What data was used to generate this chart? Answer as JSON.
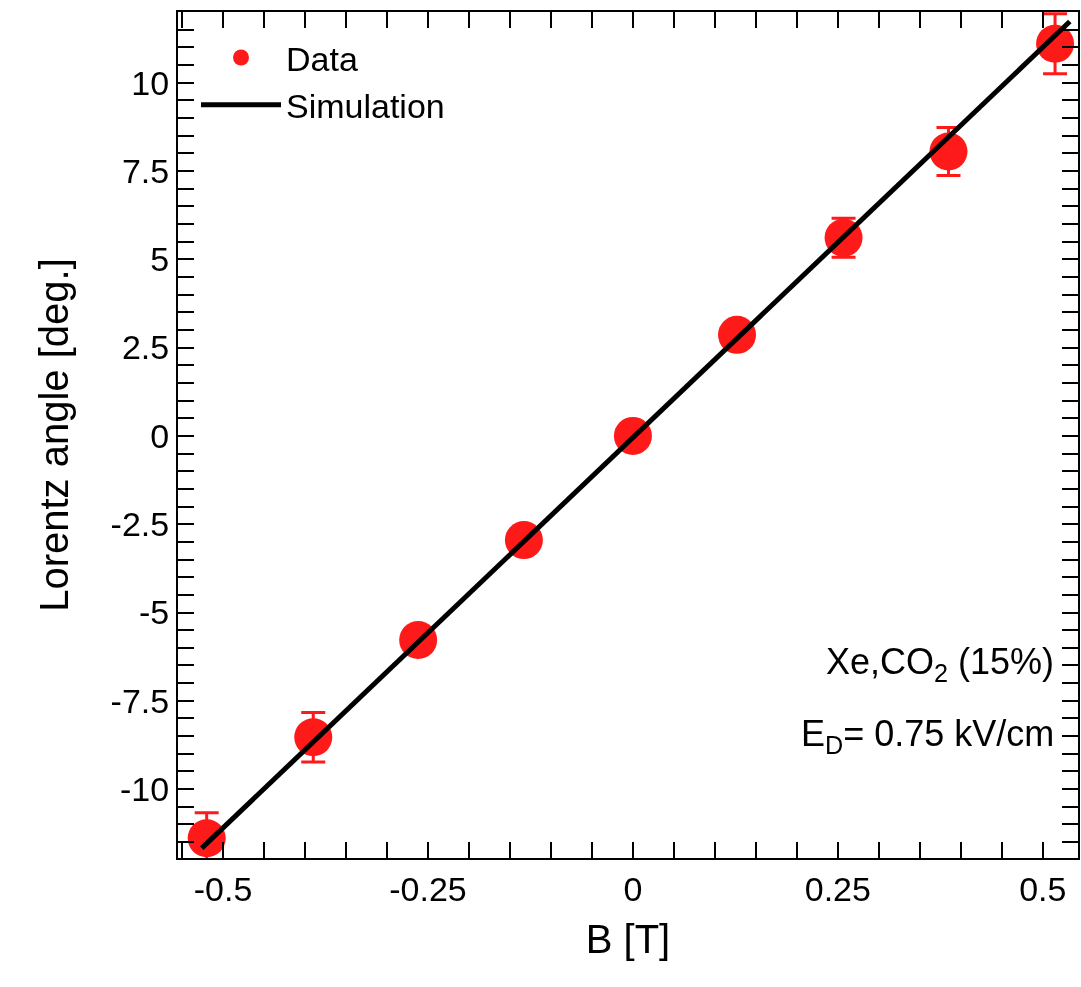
{
  "chart_data": {
    "type": "scatter",
    "xlabel": "B [T]",
    "ylabel": "Lorentz angle [deg.]",
    "xlim": [
      -0.555,
      0.543
    ],
    "ylim": [
      -11.95,
      12.0
    ],
    "xticks": [
      {
        "value": -0.55,
        "label": null
      },
      -0.5,
      {
        "value": -0.45,
        "label": null
      },
      {
        "value": -0.4,
        "label": null
      },
      {
        "value": -0.35,
        "label": null
      },
      {
        "value": -0.3,
        "label": null
      },
      -0.25,
      {
        "value": -0.2,
        "label": null
      },
      {
        "value": -0.15,
        "label": null
      },
      {
        "value": -0.1,
        "label": null
      },
      {
        "value": -0.05,
        "label": null
      },
      0,
      {
        "value": 0.05,
        "label": null
      },
      {
        "value": 0.1,
        "label": null
      },
      {
        "value": 0.15,
        "label": null
      },
      {
        "value": 0.2,
        "label": null
      },
      0.25,
      {
        "value": 0.3,
        "label": null
      },
      {
        "value": 0.35,
        "label": null
      },
      {
        "value": 0.4,
        "label": null
      },
      {
        "value": 0.45,
        "label": null
      },
      0.5
    ],
    "yticks": [
      {
        "value": -11.5,
        "label": null
      },
      {
        "value": -11,
        "label": null
      },
      {
        "value": -10.5,
        "label": null
      },
      -10,
      {
        "value": -9.5,
        "label": null
      },
      {
        "value": -9,
        "label": null
      },
      {
        "value": -8.5,
        "label": null
      },
      {
        "value": -8,
        "label": null
      },
      -7.5,
      {
        "value": -7,
        "label": null
      },
      {
        "value": -6.5,
        "label": null
      },
      {
        "value": -6,
        "label": null
      },
      {
        "value": -5.5,
        "label": null
      },
      -5,
      {
        "value": -4.5,
        "label": null
      },
      {
        "value": -4,
        "label": null
      },
      {
        "value": -3.5,
        "label": null
      },
      {
        "value": -3,
        "label": null
      },
      -2.5,
      {
        "value": -2,
        "label": null
      },
      {
        "value": -1.5,
        "label": null
      },
      {
        "value": -1,
        "label": null
      },
      {
        "value": -0.5,
        "label": null
      },
      0,
      {
        "value": 0.5,
        "label": null
      },
      {
        "value": 1,
        "label": null
      },
      {
        "value": 1.5,
        "label": null
      },
      {
        "value": 2,
        "label": null
      },
      2.5,
      {
        "value": 3,
        "label": null
      },
      {
        "value": 3.5,
        "label": null
      },
      {
        "value": 4,
        "label": null
      },
      {
        "value": 4.5,
        "label": null
      },
      5,
      {
        "value": 5.5,
        "label": null
      },
      {
        "value": 6,
        "label": null
      },
      {
        "value": 6.5,
        "label": null
      },
      {
        "value": 7,
        "label": null
      },
      7.5,
      {
        "value": 8,
        "label": null
      },
      {
        "value": 8.5,
        "label": null
      },
      {
        "value": 9,
        "label": null
      },
      {
        "value": 9.5,
        "label": null
      },
      10,
      {
        "value": 10.5,
        "label": null
      },
      {
        "value": 11,
        "label": null
      },
      {
        "value": 11.5,
        "label": null
      }
    ],
    "grid": false,
    "legend": "top left",
    "series": [
      {
        "name": "Data",
        "type": "scatter",
        "color": "#ff1a1a",
        "marker": "circle",
        "x": [
          -0.52,
          -0.39,
          -0.262,
          -0.133,
          0,
          0.127,
          0.257,
          0.385,
          0.515
        ],
        "values": [
          -11.39,
          -8.53,
          -5.78,
          -2.95,
          0,
          2.86,
          5.61,
          8.05,
          11.1
        ],
        "errors": [
          0.72,
          0.7,
          null,
          null,
          null,
          null,
          0.55,
          0.68,
          0.85
        ]
      },
      {
        "name": "Simulation",
        "type": "line",
        "color": "#000000",
        "marker": "none",
        "line_style": "solid",
        "x": [
          -0.526,
          0.533
        ],
        "values": [
          -11.67,
          11.73
        ]
      }
    ],
    "annotations": [
      "Xe,CO$_{2}$ (15%)",
      "E$_{D}$= 0.75 kV/cm"
    ]
  }
}
